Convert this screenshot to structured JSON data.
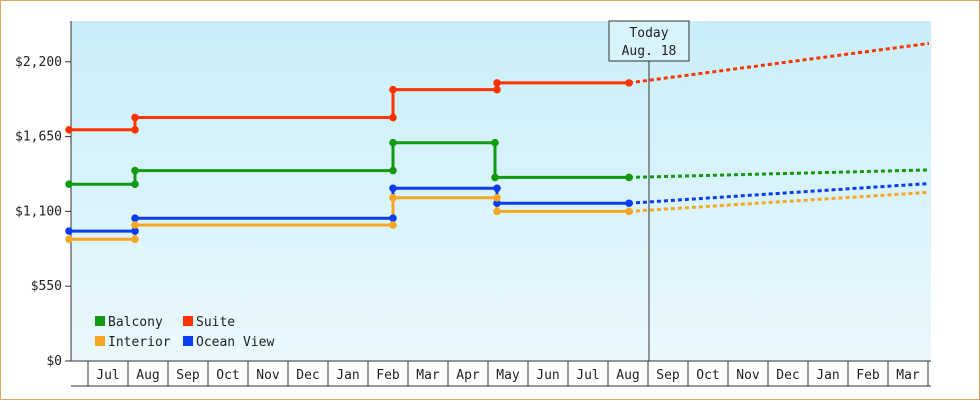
{
  "chart_data": {
    "type": "line",
    "ylim": [
      0,
      2500
    ],
    "y_ticks": [
      0,
      550,
      1100,
      1650,
      2200
    ],
    "y_tick_labels": [
      "$0",
      "$550",
      "$1,100",
      "$1,650",
      "$2,200"
    ],
    "x_tick_labels": [
      "Jul",
      "Aug",
      "Sep",
      "Oct",
      "Nov",
      "Dec",
      "Jan",
      "Feb",
      "Mar",
      "Apr",
      "May",
      "Jun",
      "Jul",
      "Aug",
      "Sep",
      "Oct",
      "Nov",
      "Dec",
      "Jan",
      "Feb",
      "Mar"
    ],
    "today_marker": {
      "line1": "Today",
      "line2": "Aug. 18",
      "x": 14.5
    },
    "grid": false,
    "background": [
      "#c9eef9",
      "#eaf8fd"
    ],
    "legend_position": "bottom-left",
    "legend": [
      {
        "label": "Balcony",
        "color": "#119911"
      },
      {
        "label": "Suite",
        "color": "#ff3300"
      },
      {
        "label": "Interior",
        "color": "#f5a623"
      },
      {
        "label": "Ocean View",
        "color": "#0a3cf0"
      }
    ],
    "series": [
      {
        "name": "Suite",
        "color": "#ff3300",
        "points": [
          [
            0.0,
            1700
          ],
          [
            1.65,
            1700
          ],
          [
            1.65,
            1790
          ],
          [
            8.1,
            1790
          ],
          [
            8.1,
            1995
          ],
          [
            10.7,
            1995
          ],
          [
            10.7,
            2045
          ],
          [
            14.0,
            2045
          ]
        ],
        "forecast": [
          [
            14.0,
            2045
          ],
          [
            21.5,
            2335
          ]
        ]
      },
      {
        "name": "Balcony",
        "color": "#119911",
        "points": [
          [
            0.0,
            1300
          ],
          [
            1.65,
            1300
          ],
          [
            1.65,
            1400
          ],
          [
            8.1,
            1400
          ],
          [
            8.1,
            1605
          ],
          [
            10.65,
            1605
          ],
          [
            10.65,
            1350
          ],
          [
            14.0,
            1350
          ]
        ],
        "forecast": [
          [
            14.0,
            1350
          ],
          [
            21.5,
            1405
          ]
        ]
      },
      {
        "name": "Ocean View",
        "color": "#0a3cf0",
        "points": [
          [
            0.0,
            955
          ],
          [
            1.65,
            955
          ],
          [
            1.65,
            1050
          ],
          [
            8.1,
            1050
          ],
          [
            8.1,
            1270
          ],
          [
            10.7,
            1270
          ],
          [
            10.7,
            1160
          ],
          [
            14.0,
            1160
          ]
        ],
        "forecast": [
          [
            14.0,
            1160
          ],
          [
            21.5,
            1305
          ]
        ]
      },
      {
        "name": "Interior",
        "color": "#f5a623",
        "points": [
          [
            0.0,
            895
          ],
          [
            1.65,
            895
          ],
          [
            1.65,
            1000
          ],
          [
            8.1,
            1000
          ],
          [
            8.1,
            1200
          ],
          [
            10.7,
            1200
          ],
          [
            10.7,
            1100
          ],
          [
            14.0,
            1100
          ]
        ],
        "forecast": [
          [
            14.0,
            1100
          ],
          [
            21.5,
            1240
          ]
        ]
      }
    ],
    "markers": [
      [
        0.0,
        1700
      ],
      [
        1.65,
        1700
      ],
      [
        1.65,
        1790
      ],
      [
        8.1,
        1790
      ],
      [
        8.1,
        1995
      ],
      [
        10.7,
        1995
      ],
      [
        10.7,
        2045
      ],
      [
        14.0,
        2045
      ],
      [
        0.0,
        1300
      ],
      [
        1.65,
        1300
      ],
      [
        1.65,
        1400
      ],
      [
        8.1,
        1400
      ],
      [
        8.1,
        1605
      ],
      [
        10.65,
        1605
      ],
      [
        10.65,
        1350
      ],
      [
        14.0,
        1350
      ],
      [
        0.0,
        955
      ],
      [
        1.65,
        955
      ],
      [
        1.65,
        1050
      ],
      [
        8.1,
        1050
      ],
      [
        8.1,
        1270
      ],
      [
        10.7,
        1270
      ],
      [
        10.7,
        1160
      ],
      [
        14.0,
        1160
      ],
      [
        0.0,
        895
      ],
      [
        1.65,
        895
      ],
      [
        1.65,
        1000
      ],
      [
        8.1,
        1000
      ],
      [
        8.1,
        1200
      ],
      [
        10.7,
        1200
      ],
      [
        10.7,
        1100
      ],
      [
        14.0,
        1100
      ]
    ]
  }
}
